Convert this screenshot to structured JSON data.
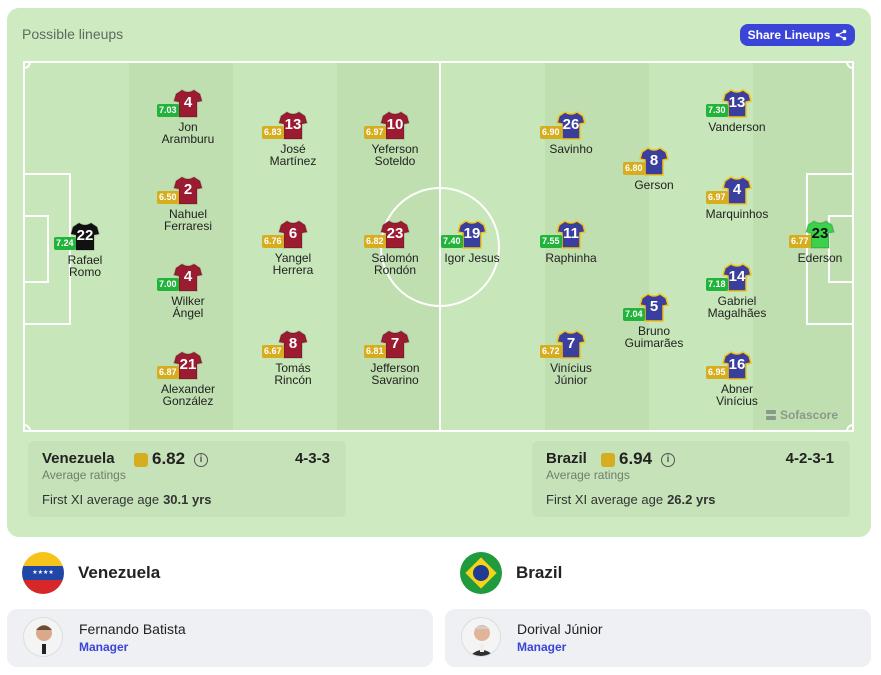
{
  "panel": {
    "title": "Possible lineups",
    "share_label": "Share Lineups",
    "branding": "Sofascore"
  },
  "home": {
    "name": "Venezuela",
    "avg_rating": "6.82",
    "avg_label": "Average ratings",
    "formation": "4-3-3",
    "age_label": "First XI average age",
    "age": "30.1 yrs",
    "shirt_color": "#9b1b30",
    "gk_color": "#111111",
    "manager": {
      "name": "Fernando Batista",
      "role": "Manager"
    },
    "players": [
      {
        "number": "22",
        "name": "Rafael\nRomo",
        "rating": "7.24",
        "gk": true
      },
      {
        "number": "4",
        "name": "Jon\nAramburu",
        "rating": "7.03"
      },
      {
        "number": "2",
        "name": "Nahuel\nFerraresi",
        "rating": "6.50"
      },
      {
        "number": "4",
        "name": "Wilker\nÁngel",
        "rating": "7.00"
      },
      {
        "number": "21",
        "name": "Alexander\nGonzález",
        "rating": "6.87"
      },
      {
        "number": "13",
        "name": "José\nMartínez",
        "rating": "6.83"
      },
      {
        "number": "6",
        "name": "Yangel\nHerrera",
        "rating": "6.76"
      },
      {
        "number": "8",
        "name": "Tomás\nRincón",
        "rating": "6.67"
      },
      {
        "number": "10",
        "name": "Yeferson\nSoteldo",
        "rating": "6.97"
      },
      {
        "number": "23",
        "name": "Salomón\nRondón",
        "rating": "6.82"
      },
      {
        "number": "7",
        "name": "Jefferson\nSavarino",
        "rating": "6.81"
      }
    ]
  },
  "away": {
    "name": "Brazil",
    "avg_rating": "6.94",
    "avg_label": "Average ratings",
    "formation": "4-2-3-1",
    "age_label": "First XI average age",
    "age": "26.2 yrs",
    "shirt_color": "#3a3e9c",
    "gk_color": "#3bd14a",
    "manager": {
      "name": "Dorival Júnior",
      "role": "Manager"
    },
    "players": [
      {
        "number": "19",
        "name": "Igor Jesus",
        "rating": "7.40"
      },
      {
        "number": "26",
        "name": "Savinho",
        "rating": "6.90"
      },
      {
        "number": "11",
        "name": "Raphinha",
        "rating": "7.55"
      },
      {
        "number": "7",
        "name": "Vinícius\nJúnior",
        "rating": "6.72"
      },
      {
        "number": "8",
        "name": "Gerson",
        "rating": "6.80"
      },
      {
        "number": "5",
        "name": "Bruno\nGuimarães",
        "rating": "7.04"
      },
      {
        "number": "13",
        "name": "Vanderson",
        "rating": "7.30"
      },
      {
        "number": "4",
        "name": "Marquinhos",
        "rating": "6.97"
      },
      {
        "number": "14",
        "name": "Gabriel\nMagalhães",
        "rating": "7.18"
      },
      {
        "number": "16",
        "name": "Abner\nVinícius",
        "rating": "6.95"
      },
      {
        "number": "23",
        "name": "Ederson",
        "rating": "6.77",
        "gk": true
      }
    ]
  },
  "colors": {
    "rating_high": "#21b33a",
    "rating_mid": "#d6ad1e",
    "accent": "#3a45d8"
  }
}
